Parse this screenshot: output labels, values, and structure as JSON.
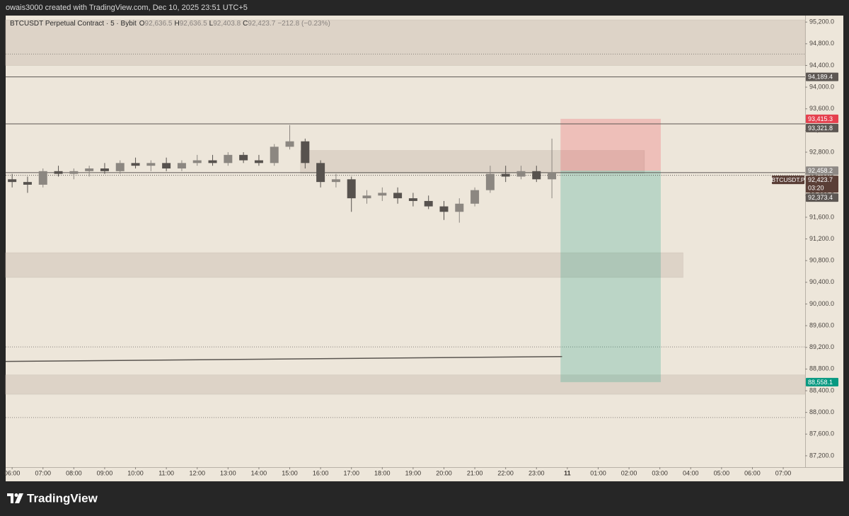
{
  "header": {
    "text": "owais3000 created with TradingView.com, Dec 10, 2025 23:51 UTC+5"
  },
  "chart_data": {
    "type": "candlestick",
    "title": "BTCUSDT Perpetual Contract · 5 · Bybit",
    "readout": [
      {
        "key": "O",
        "value": "92,636.5"
      },
      {
        "key": "H",
        "value": "92,636.5"
      },
      {
        "key": "L",
        "value": "92,403.8"
      },
      {
        "key": "C",
        "value": "92,423.7"
      }
    ],
    "change": "−212.8 (−0.23%)",
    "x": [
      6,
      6.5,
      7,
      7.5,
      8,
      8.5,
      9,
      9.5,
      10,
      10.5,
      11,
      11.5,
      12,
      12.5,
      13,
      13.5,
      14,
      14.5,
      15,
      15.5,
      16,
      16.5,
      17,
      17.5,
      18,
      18.5,
      19,
      19.5,
      20,
      20.5,
      21,
      21.5,
      22,
      22.5,
      23,
      23.5
    ],
    "open": [
      92300,
      92250,
      92200,
      92450,
      92400,
      92450,
      92500,
      92450,
      92600,
      92550,
      92600,
      92500,
      92600,
      92650,
      92600,
      92750,
      92650,
      92600,
      92900,
      93000,
      92600,
      92250,
      92300,
      91950,
      92000,
      92050,
      91950,
      91900,
      91800,
      91700,
      91850,
      92100,
      92400,
      92350,
      92450,
      92300
    ],
    "high": [
      92400,
      92350,
      92500,
      92550,
      92500,
      92550,
      92600,
      92650,
      92700,
      92650,
      92700,
      92650,
      92750,
      92750,
      92800,
      92800,
      92750,
      92950,
      93300,
      93050,
      92650,
      92400,
      92350,
      92100,
      92150,
      92150,
      92050,
      92000,
      91900,
      91950,
      92150,
      92550,
      92550,
      92550,
      92550,
      93050
    ],
    "low": [
      92150,
      92050,
      92150,
      92350,
      92300,
      92350,
      92400,
      92400,
      92500,
      92450,
      92450,
      92450,
      92550,
      92550,
      92550,
      92600,
      92550,
      92550,
      92850,
      92500,
      92150,
      92150,
      91700,
      91850,
      91900,
      91850,
      91800,
      91750,
      91550,
      91500,
      91800,
      92050,
      92250,
      92300,
      92250,
      91950
    ],
    "close": [
      92250,
      92200,
      92450,
      92400,
      92450,
      92500,
      92450,
      92600,
      92550,
      92600,
      92500,
      92600,
      92650,
      92600,
      92750,
      92650,
      92600,
      92900,
      93000,
      92600,
      92250,
      92300,
      91950,
      92000,
      92050,
      91950,
      91900,
      91800,
      91700,
      91850,
      92100,
      92400,
      92350,
      92450,
      92300,
      92423.7
    ],
    "up_color": "#8c8781",
    "down_color": "#57524e",
    "xlim": [
      5.79,
      31.71
    ],
    "ylim": [
      86990,
      95320
    ],
    "xticks": [
      {
        "value": 6,
        "label": "06:00"
      },
      {
        "value": 7,
        "label": "07:00"
      },
      {
        "value": 8,
        "label": "08:00"
      },
      {
        "value": 9,
        "label": "09:00"
      },
      {
        "value": 10,
        "label": "10:00"
      },
      {
        "value": 11,
        "label": "11:00"
      },
      {
        "value": 12,
        "label": "12:00"
      },
      {
        "value": 13,
        "label": "13:00"
      },
      {
        "value": 14,
        "label": "14:00"
      },
      {
        "value": 15,
        "label": "15:00"
      },
      {
        "value": 16,
        "label": "16:00"
      },
      {
        "value": 17,
        "label": "17:00"
      },
      {
        "value": 18,
        "label": "18:00"
      },
      {
        "value": 19,
        "label": "19:00"
      },
      {
        "value": 20,
        "label": "20:00"
      },
      {
        "value": 21,
        "label": "21:00"
      },
      {
        "value": 22,
        "label": "22:00"
      },
      {
        "value": 23,
        "label": "23:00"
      },
      {
        "value": 24,
        "label": "11"
      },
      {
        "value": 25,
        "label": "01:00"
      },
      {
        "value": 26,
        "label": "02:00"
      },
      {
        "value": 27,
        "label": "03:00"
      },
      {
        "value": 28,
        "label": "04:00"
      },
      {
        "value": 29,
        "label": "05:00"
      },
      {
        "value": 30,
        "label": "06:00"
      },
      {
        "value": 31,
        "label": "07:00"
      }
    ],
    "yticks": [
      {
        "value": 95200,
        "label": "95,200.0"
      },
      {
        "value": 94800,
        "label": "94,800.0"
      },
      {
        "value": 94400,
        "label": "94,400.0"
      },
      {
        "value": 94000,
        "label": "94,000.0"
      },
      {
        "value": 93600,
        "label": "93,600.0"
      },
      {
        "value": 93200,
        "label": "93,200.0"
      },
      {
        "value": 92800,
        "label": "92,800.0"
      },
      {
        "value": 92400,
        "label": "92,400.0"
      },
      {
        "value": 92000,
        "label": "92,000.0"
      },
      {
        "value": 91600,
        "label": "91,600.0"
      },
      {
        "value": 91200,
        "label": "91,200.0"
      },
      {
        "value": 90800,
        "label": "90,800.0"
      },
      {
        "value": 90400,
        "label": "90,400.0"
      },
      {
        "value": 90000,
        "label": "90,000.0"
      },
      {
        "value": 89600,
        "label": "89,600.0"
      },
      {
        "value": 89200,
        "label": "89,200.0"
      },
      {
        "value": 88800,
        "label": "88,800.0"
      },
      {
        "value": 88400,
        "label": "88,400.0"
      },
      {
        "value": 88000,
        "label": "88,000.0"
      },
      {
        "value": 87600,
        "label": "87,600.0"
      },
      {
        "value": 87200,
        "label": "87,200.0"
      }
    ],
    "zones": [
      {
        "x": [
          5.79,
          31.71
        ],
        "y": [
          94400,
          95240
        ]
      },
      {
        "x": [
          15.35,
          26.5
        ],
        "y": [
          92410,
          92830
        ]
      },
      {
        "x": [
          5.79,
          27.75
        ],
        "y": [
          90490,
          90945
        ]
      },
      {
        "x": [
          5.79,
          31.71
        ],
        "y": [
          88335,
          88690
        ]
      }
    ],
    "levels": [
      94610,
      89208,
      87905
    ],
    "moving_average": {
      "x": [
        5.79,
        23.83
      ],
      "values": [
        88940,
        89030
      ],
      "color": "#5a5550"
    },
    "position": {
      "x": [
        23.78,
        27.03
      ],
      "stop": 93415.3,
      "entry": 92458.2,
      "target": 88558.1
    },
    "price_labels": [
      {
        "value": 94189.4,
        "label": "94,189.4",
        "color": "#5d5753",
        "line": "solid"
      },
      {
        "value": 93415.3,
        "label": "93,415.3",
        "color": "#e5404e"
      },
      {
        "value": 93321.8,
        "label": "93,321.8",
        "color": "#5d5753",
        "line": "solid"
      },
      {
        "value": 92458.2,
        "label": "92,458.2",
        "color": "#8f8a86"
      },
      {
        "value": 92423.7,
        "label": "92,423.7",
        "color": "#5a3e36",
        "line": "solid"
      },
      {
        "value": 92373.4,
        "label": "92,373.4",
        "color": "#5d5753",
        "line": "dotted"
      },
      {
        "value": 88558.1,
        "label": "88,558.1",
        "color": "#089981"
      }
    ],
    "symbol_tag": "BTCUSDT.P",
    "countdown": "03:20"
  },
  "footer": {
    "brand": "TradingView"
  }
}
